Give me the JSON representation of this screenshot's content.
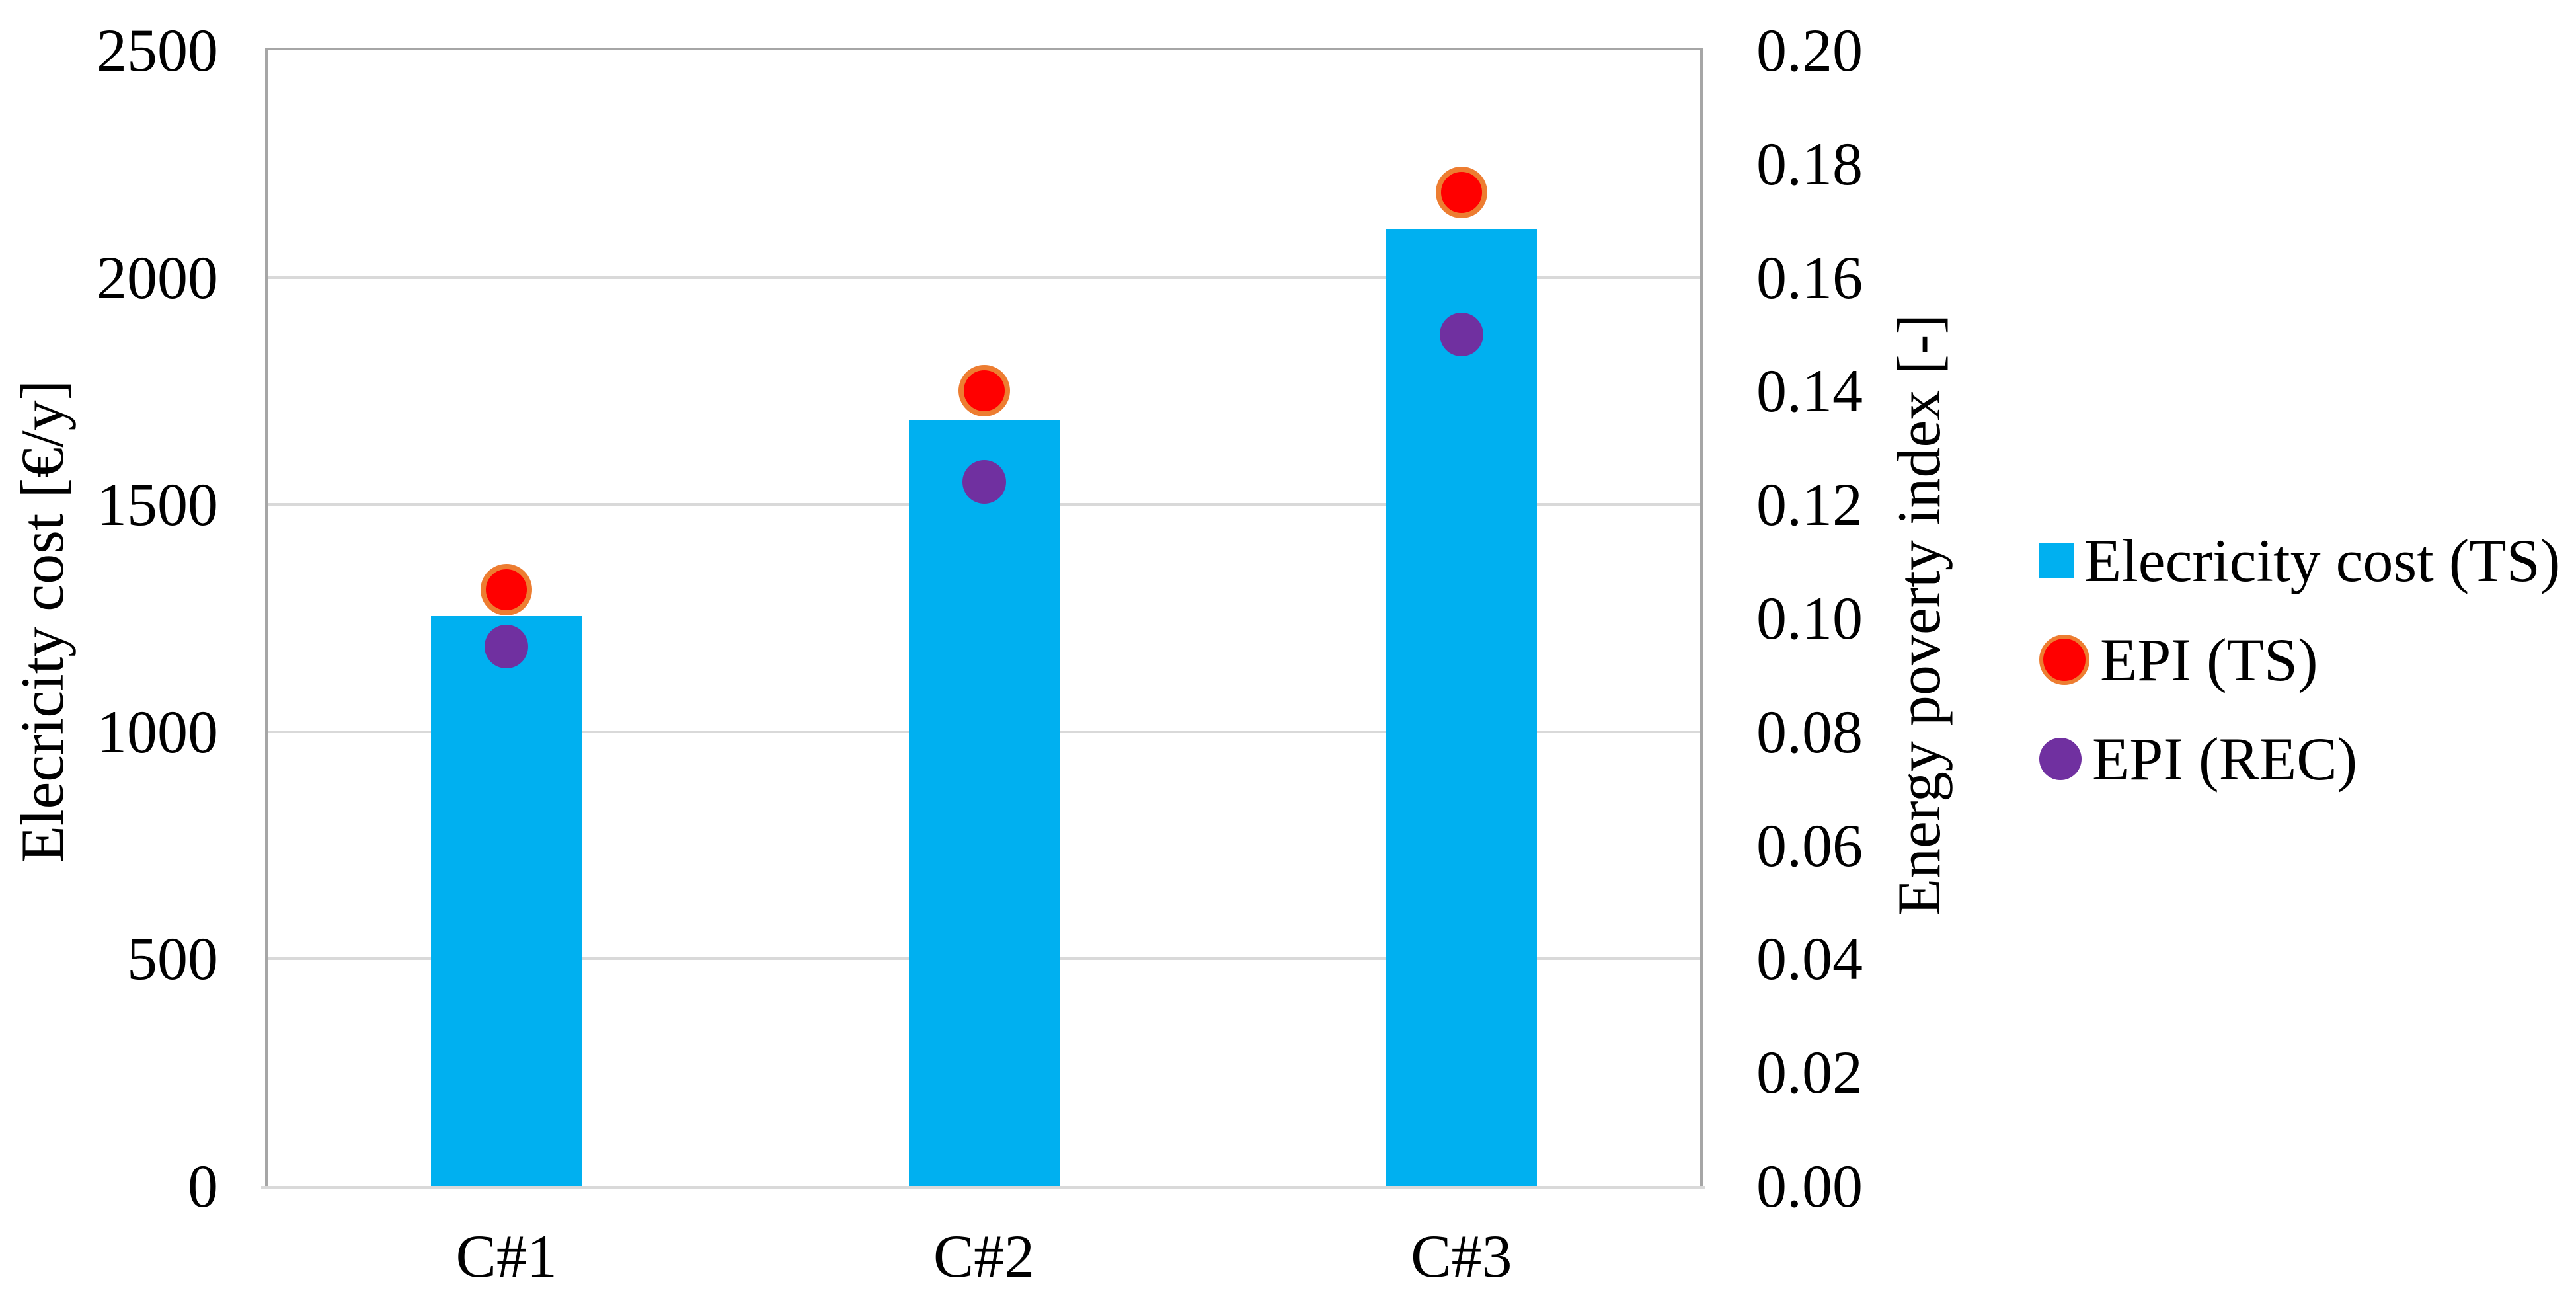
{
  "figure": {
    "background": "#FFFFFF",
    "frame_color": "#A6A6A6",
    "axis_line_color": "#D9D9D9"
  },
  "chart_data": {
    "type": "combo-bar-scatter",
    "categories": [
      "C#1",
      "C#2",
      "C#3"
    ],
    "series": [
      {
        "name": "Elecricity cost (TS)",
        "type": "bar",
        "axis": "left",
        "color": "#00B0F0",
        "values": [
          1255,
          1685,
          2105
        ]
      },
      {
        "name": "EPI (TS)",
        "type": "scatter",
        "axis": "right",
        "color": "#FF0000",
        "border_color": "#ED7D31",
        "values": [
          0.105,
          0.14,
          0.175
        ]
      },
      {
        "name": "EPI (REC)",
        "type": "scatter",
        "axis": "right",
        "color": "#7030A0",
        "values": [
          0.095,
          0.124,
          0.15
        ]
      }
    ],
    "axes": {
      "left": {
        "title": "Elecricity cost [€/y]",
        "min": 0,
        "max": 2500,
        "step": 500,
        "decimals": 0
      },
      "right": {
        "title": "Energy poverty index [-]",
        "min": 0,
        "max": 0.2,
        "step": 0.02,
        "decimals": 2
      }
    },
    "grid": {
      "color": "#D9D9D9",
      "lines_at_left_values": [
        500,
        1000,
        1500,
        2000
      ]
    },
    "legend_position": "right",
    "title": ""
  }
}
